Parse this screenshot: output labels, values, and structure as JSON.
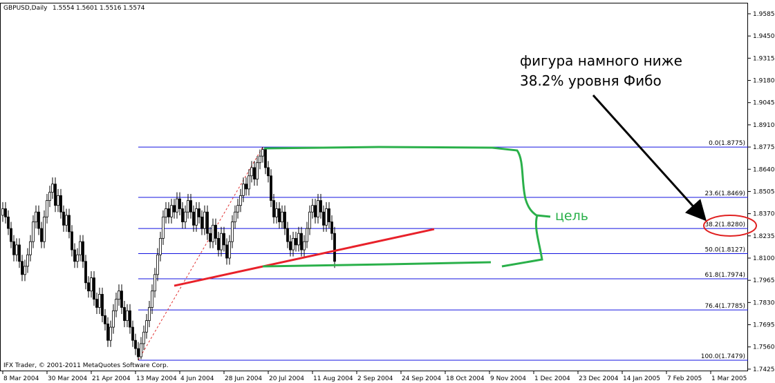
{
  "chart_data": {
    "type": "candlestick",
    "symbol": "GBPUSD,Daily",
    "quote": [
      1.5554,
      1.5601,
      1.5516,
      1.5574
    ],
    "footer": "IFX Trader, © 2001-2011 MetaQuotes Software Corp.",
    "annotation": [
      "фигура намного ниже",
      "38.2% уровня Фибо"
    ],
    "target_label": "цель",
    "xlim": [
      -1,
      269.5
    ],
    "xticks": [
      {
        "value": 0,
        "label": "8 Mar 2004"
      },
      {
        "value": 16,
        "label": "30 Mar 2004"
      },
      {
        "value": 32,
        "label": "21 Apr 2004"
      },
      {
        "value": 48,
        "label": "13 May 2004"
      },
      {
        "value": 64,
        "label": "4 Jun 2004"
      },
      {
        "value": 80,
        "label": "28 Jun 2004"
      },
      {
        "value": 96,
        "label": "20 Jul 2004"
      },
      {
        "value": 112,
        "label": "11 Aug 2004"
      },
      {
        "value": 128,
        "label": "2 Sep 2004"
      },
      {
        "value": 144,
        "label": "24 Sep 2004"
      },
      {
        "value": 160,
        "label": "18 Oct 2004"
      },
      {
        "value": 176,
        "label": "9 Nov 2004"
      },
      {
        "value": 192,
        "label": "1 Dec 2004"
      },
      {
        "value": 208,
        "label": "23 Dec 2004"
      },
      {
        "value": 224,
        "label": "14 Jan 2005"
      },
      {
        "value": 240,
        "label": "7 Feb 2005"
      },
      {
        "value": 256,
        "label": "1 Mar 2005"
      }
    ],
    "ylim": [
      1.7412,
      1.9652
    ],
    "yticks": [
      1.9585,
      {
        "value": 1.945,
        "label": "1.9450"
      },
      1.9315,
      {
        "value": 1.918,
        "label": "1.9180"
      },
      1.9045,
      {
        "value": 1.891,
        "label": "1.8910"
      },
      1.8775,
      {
        "value": 1.864,
        "label": "1.8640"
      },
      1.8505,
      {
        "value": 1.837,
        "label": "1.8370"
      },
      1.8235,
      {
        "value": 1.81,
        "label": "1.8100"
      },
      1.7965,
      {
        "value": 1.783,
        "label": "1.7830"
      },
      1.7695,
      {
        "value": 1.756,
        "label": "1.7560"
      },
      1.7425
    ],
    "x": [
      0,
      1,
      2,
      3,
      4,
      5,
      6,
      7,
      8,
      9,
      10,
      11,
      12,
      13,
      14,
      15,
      16,
      17,
      18,
      19,
      20,
      21,
      22,
      23,
      24,
      25,
      26,
      27,
      28,
      29,
      30,
      31,
      32,
      33,
      34,
      35,
      36,
      37,
      38,
      39,
      40,
      41,
      42,
      43,
      44,
      45,
      46,
      47,
      48,
      49,
      50,
      51,
      52,
      53,
      54,
      55,
      56,
      57,
      58,
      59,
      60,
      61,
      62,
      63,
      64,
      65,
      66,
      67,
      68,
      69,
      70,
      71,
      72,
      73,
      74,
      75,
      76,
      77,
      78,
      79,
      80,
      81,
      82,
      83,
      84,
      85,
      86,
      87,
      88,
      89,
      90,
      91,
      92,
      93,
      94,
      95,
      96,
      97,
      98,
      99,
      100,
      101,
      102,
      103,
      104,
      105,
      106,
      107,
      108,
      109,
      110,
      111,
      112,
      113,
      114,
      115,
      116,
      117,
      118,
      119,
      120
    ],
    "open": [
      1.836,
      1.84,
      1.835,
      1.828,
      1.82,
      1.812,
      1.818,
      1.808,
      1.8,
      1.805,
      1.812,
      1.82,
      1.832,
      1.838,
      1.828,
      1.82,
      1.835,
      1.845,
      1.85,
      1.855,
      1.842,
      1.848,
      1.838,
      1.83,
      1.836,
      1.826,
      1.815,
      1.808,
      1.812,
      1.82,
      1.808,
      1.795,
      1.79,
      1.798,
      1.785,
      1.78,
      1.788,
      1.775,
      1.77,
      1.76,
      1.768,
      1.778,
      1.785,
      1.79,
      1.78,
      1.772,
      1.778,
      1.768,
      1.76,
      1.755,
      1.75,
      1.758,
      1.765,
      1.772,
      1.78,
      1.79,
      1.8,
      1.812,
      1.822,
      1.835,
      1.84,
      1.835,
      1.842,
      1.838,
      1.846,
      1.84,
      1.832,
      1.838,
      1.845,
      1.838,
      1.83,
      1.84,
      1.835,
      1.828,
      1.838,
      1.825,
      1.82,
      1.83,
      1.822,
      1.815,
      1.825,
      1.818,
      1.81,
      1.82,
      1.832,
      1.838,
      1.842,
      1.848,
      1.855,
      1.852,
      1.86,
      1.865,
      1.858,
      1.868,
      1.872,
      1.876,
      1.865,
      1.86,
      1.845,
      1.835,
      1.84,
      1.832,
      1.838,
      1.828,
      1.82,
      1.815,
      1.822,
      1.818,
      1.825,
      1.815,
      1.82,
      1.828,
      1.838,
      1.842,
      1.835,
      1.845,
      1.838,
      1.83,
      1.84,
      1.832,
      1.825
    ],
    "high": [
      1.844,
      1.844,
      1.839,
      1.832,
      1.824,
      1.822,
      1.822,
      1.812,
      1.809,
      1.816,
      1.824,
      1.836,
      1.842,
      1.842,
      1.832,
      1.839,
      1.849,
      1.854,
      1.859,
      1.859,
      1.852,
      1.852,
      1.842,
      1.84,
      1.84,
      1.83,
      1.819,
      1.816,
      1.824,
      1.824,
      1.812,
      1.799,
      1.802,
      1.802,
      1.789,
      1.792,
      1.792,
      1.779,
      1.774,
      1.772,
      1.782,
      1.789,
      1.794,
      1.794,
      1.784,
      1.782,
      1.782,
      1.772,
      1.764,
      1.759,
      1.762,
      1.769,
      1.776,
      1.784,
      1.794,
      1.804,
      1.816,
      1.826,
      1.839,
      1.844,
      1.844,
      1.846,
      1.846,
      1.85,
      1.85,
      1.844,
      1.842,
      1.849,
      1.849,
      1.842,
      1.844,
      1.844,
      1.839,
      1.842,
      1.842,
      1.829,
      1.834,
      1.834,
      1.826,
      1.829,
      1.829,
      1.822,
      1.824,
      1.836,
      1.842,
      1.846,
      1.852,
      1.859,
      1.859,
      1.864,
      1.869,
      1.869,
      1.872,
      1.876,
      1.8775,
      1.877,
      1.869,
      1.864,
      1.849,
      1.844,
      1.844,
      1.842,
      1.842,
      1.832,
      1.824,
      1.826,
      1.826,
      1.829,
      1.829,
      1.824,
      1.832,
      1.842,
      1.846,
      1.846,
      1.849,
      1.849,
      1.842,
      1.844,
      1.844,
      1.836,
      1.829
    ],
    "low": [
      1.832,
      1.831,
      1.824,
      1.816,
      1.808,
      1.808,
      1.804,
      1.796,
      1.796,
      1.801,
      1.808,
      1.816,
      1.828,
      1.824,
      1.816,
      1.816,
      1.831,
      1.841,
      1.846,
      1.838,
      1.838,
      1.834,
      1.826,
      1.826,
      1.822,
      1.811,
      1.804,
      1.804,
      1.808,
      1.804,
      1.791,
      1.786,
      1.786,
      1.781,
      1.776,
      1.776,
      1.771,
      1.766,
      1.756,
      1.756,
      1.764,
      1.774,
      1.781,
      1.776,
      1.768,
      1.768,
      1.764,
      1.756,
      1.751,
      1.7479,
      1.7485,
      1.754,
      1.761,
      1.768,
      1.776,
      1.786,
      1.796,
      1.808,
      1.818,
      1.831,
      1.831,
      1.831,
      1.834,
      1.834,
      1.836,
      1.828,
      1.828,
      1.834,
      1.834,
      1.826,
      1.826,
      1.831,
      1.824,
      1.824,
      1.821,
      1.816,
      1.816,
      1.818,
      1.811,
      1.811,
      1.814,
      1.806,
      1.806,
      1.816,
      1.828,
      1.834,
      1.838,
      1.844,
      1.848,
      1.848,
      1.856,
      1.854,
      1.854,
      1.864,
      1.868,
      1.861,
      1.856,
      1.841,
      1.831,
      1.831,
      1.828,
      1.828,
      1.824,
      1.816,
      1.811,
      1.811,
      1.814,
      1.814,
      1.811,
      1.811,
      1.816,
      1.824,
      1.834,
      1.831,
      1.831,
      1.834,
      1.826,
      1.826,
      1.828,
      1.821,
      1.804
    ],
    "close": [
      1.84,
      1.835,
      1.828,
      1.82,
      1.812,
      1.818,
      1.808,
      1.8,
      1.805,
      1.812,
      1.82,
      1.832,
      1.838,
      1.828,
      1.82,
      1.835,
      1.845,
      1.85,
      1.855,
      1.842,
      1.848,
      1.838,
      1.83,
      1.836,
      1.826,
      1.815,
      1.808,
      1.812,
      1.82,
      1.808,
      1.795,
      1.79,
      1.798,
      1.785,
      1.78,
      1.788,
      1.775,
      1.77,
      1.76,
      1.768,
      1.778,
      1.785,
      1.79,
      1.78,
      1.772,
      1.778,
      1.768,
      1.76,
      1.755,
      1.75,
      1.758,
      1.765,
      1.772,
      1.78,
      1.79,
      1.8,
      1.812,
      1.822,
      1.835,
      1.84,
      1.835,
      1.842,
      1.838,
      1.846,
      1.84,
      1.832,
      1.838,
      1.845,
      1.838,
      1.83,
      1.84,
      1.835,
      1.828,
      1.838,
      1.825,
      1.82,
      1.83,
      1.822,
      1.815,
      1.825,
      1.818,
      1.81,
      1.82,
      1.832,
      1.838,
      1.842,
      1.848,
      1.855,
      1.852,
      1.86,
      1.865,
      1.858,
      1.868,
      1.872,
      1.876,
      1.865,
      1.86,
      1.845,
      1.835,
      1.84,
      1.832,
      1.838,
      1.828,
      1.82,
      1.815,
      1.822,
      1.818,
      1.825,
      1.815,
      1.82,
      1.828,
      1.838,
      1.842,
      1.835,
      1.845,
      1.838,
      1.83,
      1.84,
      1.832,
      1.825,
      1.808
    ],
    "fibo": {
      "anchor_bars": [
        49,
        94
      ],
      "color": "#1010e0",
      "anchor_color": "#e03030",
      "levels": [
        {
          "value": 1.8775,
          "label": "0.0(1.8775)"
        },
        {
          "value": 1.8469,
          "label": "23.6(1.8469)"
        },
        {
          "value": 1.828,
          "label": "38.2(1.8280)"
        },
        {
          "value": 1.8127,
          "label": "50.0(1.8127)"
        },
        {
          "value": 1.7974,
          "label": "61.8(1.7974)"
        },
        {
          "value": 1.7785,
          "label": "76.4(1.7785)"
        },
        {
          "value": 1.7479,
          "label": "100.0(1.7479)"
        }
      ]
    },
    "trendline": {
      "x": [
        62,
        156
      ],
      "y": [
        1.7932,
        1.8276
      ],
      "color": "#e8212a"
    }
  }
}
